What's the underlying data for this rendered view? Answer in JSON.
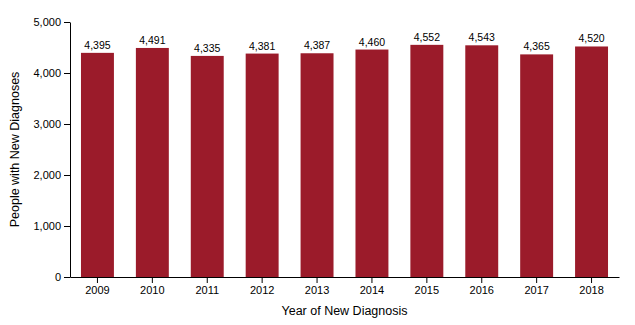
{
  "chart_data": {
    "type": "bar",
    "xlabel": "Year of New Diagnosis",
    "ylabel": "People with New Diagnoses",
    "categories": [
      "2009",
      "2010",
      "2011",
      "2012",
      "2013",
      "2014",
      "2015",
      "2016",
      "2017",
      "2018"
    ],
    "values": [
      4395,
      4491,
      4335,
      4381,
      4387,
      4460,
      4552,
      4543,
      4365,
      4520
    ],
    "value_labels": [
      "4,395",
      "4,491",
      "4,335",
      "4,381",
      "4,387",
      "4,460",
      "4,552",
      "4,543",
      "4,365",
      "4,520"
    ],
    "data_labels": true,
    "color": "#9B1B2A",
    "ylim": [
      0,
      5000
    ],
    "yticks": [
      0,
      {
        "value": 1000,
        "label": "1,000"
      },
      {
        "value": 2000,
        "label": "2,000"
      },
      {
        "value": 3000,
        "label": "3,000"
      },
      {
        "value": 4000,
        "label": "4,000"
      },
      {
        "value": 5000,
        "label": "5,000"
      }
    ],
    "grid": false
  }
}
